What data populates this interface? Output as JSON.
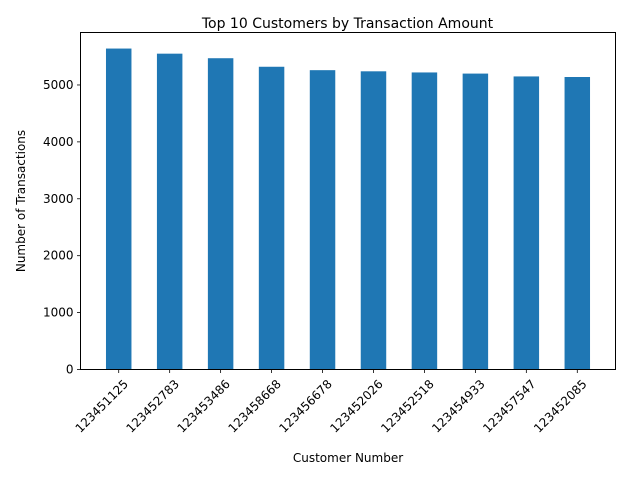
{
  "chart_data": {
    "type": "bar",
    "title": "Top 10 Customers by Transaction Amount",
    "xlabel": "Customer Number",
    "ylabel": "Number of Transactions",
    "categories": [
      "123451125",
      "123452783",
      "123453486",
      "123458668",
      "123456678",
      "123452026",
      "123452518",
      "123454933",
      "123457547",
      "123452085"
    ],
    "values": [
      5640,
      5550,
      5470,
      5320,
      5260,
      5240,
      5220,
      5200,
      5150,
      5140
    ],
    "ylim": [
      0,
      5922
    ],
    "yticks": [
      0,
      1000,
      2000,
      3000,
      4000,
      5000
    ],
    "bar_color": "#1f77b4",
    "grid": false,
    "legend": "none"
  }
}
